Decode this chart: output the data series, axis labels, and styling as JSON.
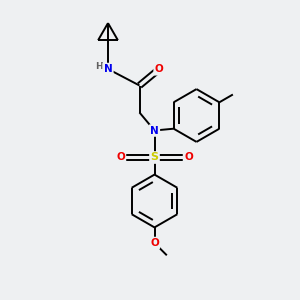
{
  "background_color": "#eef0f2",
  "atom_colors": {
    "C": "#000000",
    "N": "#0000ee",
    "O": "#ee0000",
    "S": "#cccc00",
    "H": "#606060"
  },
  "bond_color": "#000000",
  "bond_width": 1.4,
  "figsize": [
    3.0,
    3.0
  ],
  "dpi": 100,
  "xlim": [
    0,
    10
  ],
  "ylim": [
    0,
    10
  ]
}
